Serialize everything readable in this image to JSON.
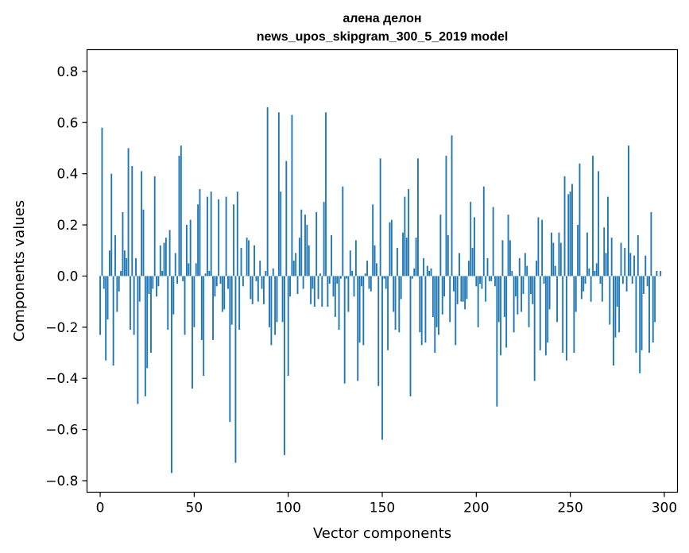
{
  "chart_data": {
    "type": "bar",
    "title": "алена делон",
    "subtitle": "news_upos_skipgram_300_5_2019 model",
    "xlabel": "Vector components",
    "ylabel": "Components values",
    "xlim": [
      -7,
      307
    ],
    "ylim": [
      -0.845,
      0.885
    ],
    "xticks": [
      0,
      50,
      100,
      150,
      200,
      250,
      300
    ],
    "xtick_labels": [
      "0",
      "50",
      "100",
      "150",
      "200",
      "250",
      "300"
    ],
    "yticks": [
      -0.8,
      -0.6,
      -0.4,
      -0.2,
      0.0,
      0.2,
      0.4,
      0.6,
      0.8
    ],
    "ytick_labels": [
      "−0.8",
      "−0.6",
      "−0.4",
      "−0.2",
      "0.0",
      "0.2",
      "0.4",
      "0.6",
      "0.8"
    ],
    "grid": false,
    "bar_color": "#1f77b4",
    "values": [
      -0.23,
      0.58,
      -0.05,
      -0.33,
      -0.17,
      0.1,
      0.4,
      -0.35,
      0.16,
      -0.14,
      -0.06,
      0.02,
      0.25,
      0.1,
      0.07,
      0.5,
      -0.21,
      0.43,
      -0.23,
      0.07,
      -0.5,
      -0.1,
      0.41,
      0.26,
      -0.47,
      -0.36,
      -0.07,
      -0.3,
      -0.05,
      0.39,
      -0.08,
      -0.04,
      0.12,
      0.02,
      0.13,
      0.15,
      -0.21,
      0.18,
      -0.77,
      -0.15,
      0.09,
      -0.03,
      0.47,
      0.51,
      -0.02,
      -0.23,
      0.2,
      0.05,
      0.22,
      -0.44,
      -0.2,
      0.05,
      0.28,
      0.34,
      -0.25,
      -0.39,
      0.01,
      0.31,
      0.02,
      0.33,
      -0.25,
      -0.08,
      -0.04,
      0.3,
      -0.03,
      -0.14,
      -0.13,
      0.31,
      -0.05,
      -0.57,
      -0.19,
      0.28,
      -0.73,
      0.33,
      -0.21,
      0.11,
      -0.04,
      0,
      0.15,
      0.14,
      -0.09,
      -0.11,
      0.12,
      -0.02,
      -0.1,
      0.06,
      -0.05,
      -0.11,
      0.02,
      0.66,
      -0.2,
      -0.27,
      0.03,
      -0.23,
      -0.18,
      0.64,
      0.33,
      -0.18,
      -0.7,
      0.45,
      -0.39,
      -0.08,
      0.63,
      0.06,
      0.09,
      -0.07,
      0.15,
      0.26,
      -0.05,
      0.24,
      0.2,
      0.12,
      -0.11,
      -0.05,
      -0.12,
      0.25,
      -0.09,
      0.01,
      -0.12,
      0.29,
      0.64,
      -0.12,
      -0.03,
      0.16,
      -0.08,
      -0.16,
      -0.03,
      -0.21,
      -0.01,
      0.35,
      -0.42,
      -0.01,
      -0.14,
      0.1,
      0.02,
      -0.08,
      0.14,
      -0.41,
      -0.26,
      -0.04,
      -0.27,
      0.01,
      0.06,
      -0.05,
      -0.06,
      0.28,
      0.12,
      0.05,
      -0.43,
      0.46,
      -0.64,
      -0.01,
      -0.05,
      -0.29,
      0.21,
      0.22,
      -0.14,
      -0.21,
      0.11,
      -0.22,
      -0.09,
      0.17,
      0.31,
      0.15,
      0.34,
      -0.47,
      -0.01,
      0.03,
      0.15,
      0.46,
      -0.22,
      -0.27,
      0.07,
      -0.26,
      0.04,
      0.02,
      0.03,
      -0.16,
      -0.3,
      -0.2,
      -0.23,
      0.24,
      -0.15,
      -0.08,
      0.47,
      0.16,
      -0.18,
      0.55,
      -0.06,
      -0.27,
      -0.11,
      0.09,
      -0.1,
      -0.1,
      -0.13,
      -0.09,
      0.06,
      0.29,
      0.11,
      0.23,
      -0.04,
      -0.2,
      -0.03,
      -0.05,
      0.35,
      -0.1,
      0.07,
      -0.02,
      -0.02,
      0.27,
      -0.04,
      -0.51,
      -0.18,
      -0.31,
      0.14,
      -0.16,
      -0.28,
      0.24,
      0.14,
      0.02,
      -0.22,
      -0.08,
      -0.15,
      0.07,
      -0.14,
      -0.07,
      0.09,
      0.04,
      -0.2,
      -0.07,
      -0.11,
      -0.41,
      0.06,
      0.23,
      -0.29,
      0.22,
      -0.03,
      -0.31,
      -0.26,
      -0.13,
      0.17,
      0.13,
      0.04,
      -0.18,
      0.17,
      0.13,
      -0.3,
      0.39,
      -0.33,
      0.32,
      0.33,
      0.36,
      -0.3,
      -0.14,
      0.2,
      0.44,
      -0.09,
      -0.06,
      -0.03,
      0.17,
      0.03,
      -0.1,
      0.47,
      0.02,
      0.05,
      0.41,
      -0.03,
      -0.1,
      0.19,
      0.09,
      0.31,
      -0.19,
      0.15,
      -0.35,
      -0.24,
      -0.12,
      -0.22,
      0.13,
      -0.03,
      0.11,
      -0.06,
      0.51,
      0.09,
      -0.03,
      0.08,
      -0.3,
      0.16,
      -0.38,
      -0.29,
      -0.07,
      0.08,
      -0.04,
      -0.3,
      0.25,
      -0.26,
      -0.18,
      0.02,
      0,
      0.02
    ]
  }
}
